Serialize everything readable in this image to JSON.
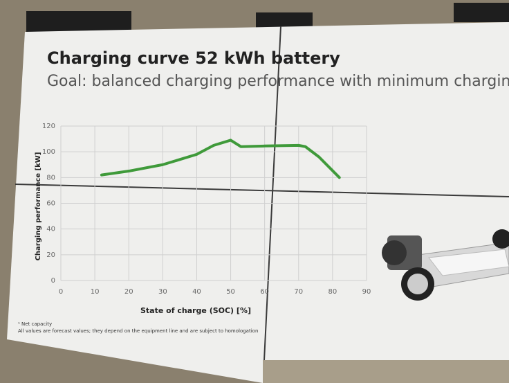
{
  "chart_data": {
    "type": "line",
    "title": "Charging curve 52 kWh battery",
    "subtitle": "Goal: balanced charging performance with minimum charging",
    "x_label": "State of charge (SOC) [%]",
    "y_label": "Charging performance [kW]",
    "x": [
      12,
      20,
      30,
      40,
      45,
      50,
      53,
      60,
      70,
      72,
      76,
      82
    ],
    "series": [
      {
        "name": "Charging curve",
        "color": "#3f9a3a",
        "values": [
          82,
          85,
          90,
          98,
          105,
          109,
          104,
          104.5,
          105,
          104,
          96,
          80
        ]
      }
    ],
    "xlim": [
      0,
      90
    ],
    "xticks": [
      0,
      10,
      20,
      30,
      40,
      50,
      60,
      70,
      80,
      90
    ],
    "ylim": [
      0,
      120
    ],
    "yticks": [
      0,
      20,
      40,
      60,
      80,
      100,
      120
    ],
    "grid": true,
    "footnotes": [
      "¹ Net capacity",
      "All values are forecast values; they depend on the equipment line and are subject to homologation"
    ]
  }
}
